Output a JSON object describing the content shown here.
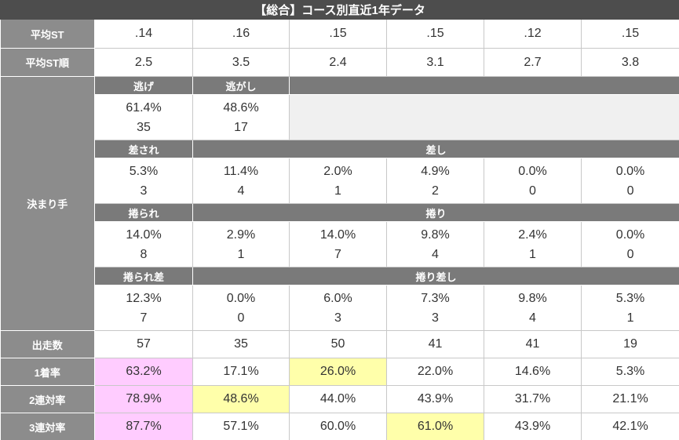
{
  "title": "【総合】コース別直近1年データ",
  "top_rows": [
    {
      "label": "平均ST",
      "values": [
        ".14",
        ".16",
        ".15",
        ".15",
        ".12",
        ".15"
      ]
    },
    {
      "label": "平均ST順",
      "values": [
        "2.5",
        "3.5",
        "2.4",
        "3.1",
        "2.7",
        "3.8"
      ]
    }
  ],
  "kimarite": {
    "label": "決まり手",
    "groups": [
      {
        "headers": [
          "逃げ",
          "逃がし"
        ],
        "rates": [
          "61.4%",
          "48.6%"
        ],
        "counts": [
          "35",
          "17"
        ]
      },
      {
        "headers": [
          "差され",
          "差し"
        ],
        "rates": [
          "5.3%",
          "11.4%",
          "2.0%",
          "4.9%",
          "0.0%",
          "0.0%"
        ],
        "counts": [
          "3",
          "4",
          "1",
          "2",
          "0",
          "0"
        ]
      },
      {
        "headers": [
          "捲られ",
          "捲り"
        ],
        "rates": [
          "14.0%",
          "2.9%",
          "14.0%",
          "9.8%",
          "2.4%",
          "0.0%"
        ],
        "counts": [
          "8",
          "1",
          "7",
          "4",
          "1",
          "0"
        ]
      },
      {
        "headers": [
          "捲られ差",
          "捲り差し"
        ],
        "rates": [
          "12.3%",
          "0.0%",
          "6.0%",
          "7.3%",
          "9.8%",
          "5.3%"
        ],
        "counts": [
          "7",
          "0",
          "3",
          "3",
          "4",
          "1"
        ]
      }
    ]
  },
  "bottom_rows": [
    {
      "label": "出走数",
      "values": [
        "57",
        "35",
        "50",
        "41",
        "41",
        "19"
      ]
    },
    {
      "label": "1着率",
      "values": [
        "63.2%",
        "17.1%",
        "26.0%",
        "22.0%",
        "14.6%",
        "5.3%"
      ]
    },
    {
      "label": "2連対率",
      "values": [
        "78.9%",
        "48.6%",
        "44.0%",
        "43.9%",
        "31.7%",
        "21.1%"
      ]
    },
    {
      "label": "3連対率",
      "values": [
        "87.7%",
        "57.1%",
        "60.0%",
        "61.0%",
        "43.9%",
        "42.1%"
      ]
    }
  ]
}
